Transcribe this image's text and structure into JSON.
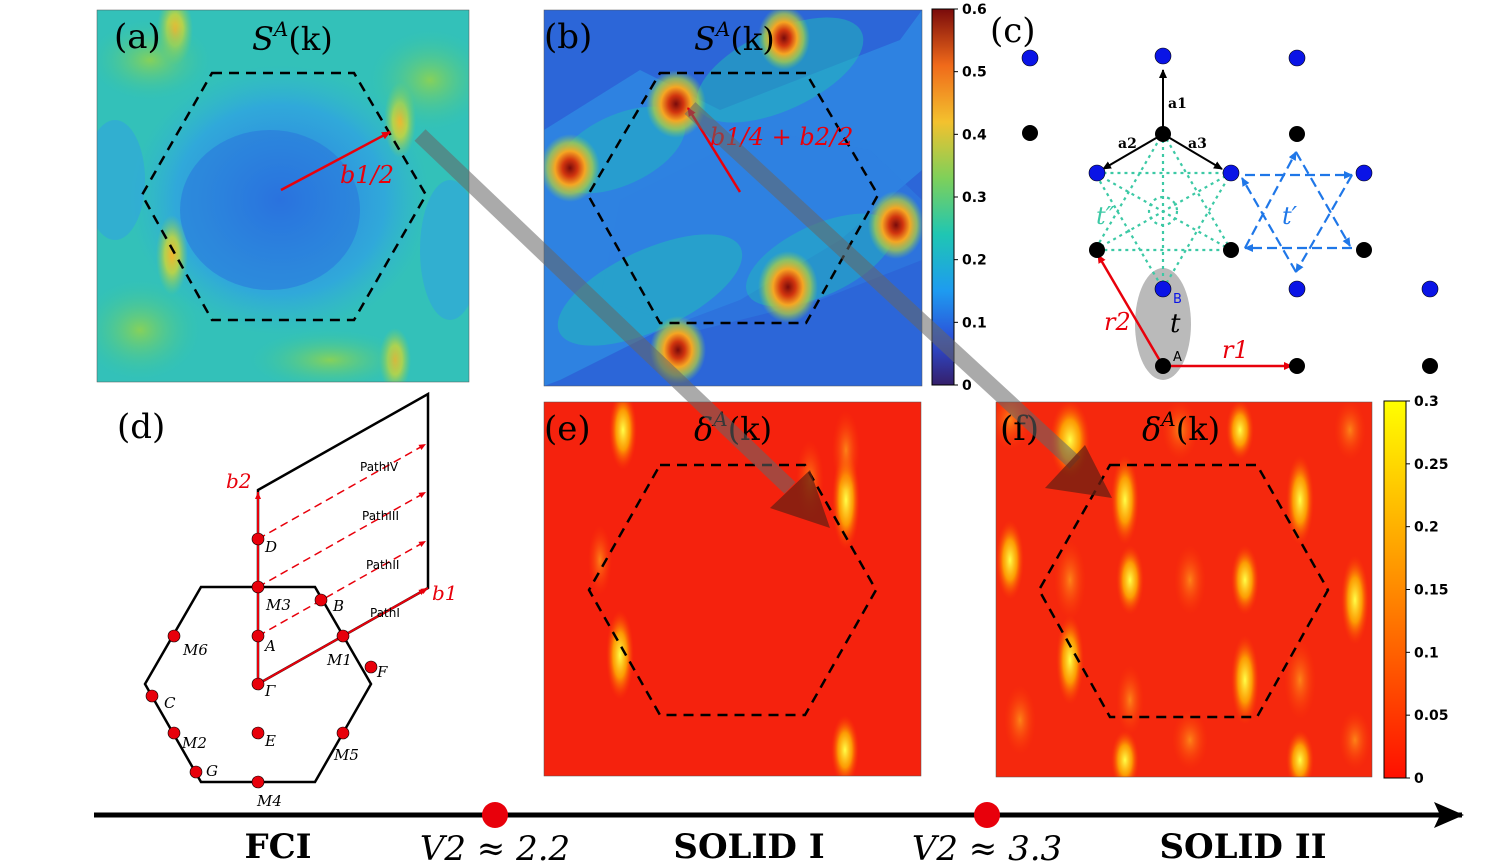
{
  "panels": {
    "a": {
      "tag": "(a)",
      "title_base": "S",
      "title_sup": "A",
      "title_arg": "(k)",
      "vector_label": "b1/2"
    },
    "b": {
      "tag": "(b)",
      "title_base": "S",
      "title_sup": "A",
      "title_arg": "(k)",
      "vector_label": "b1/4 + b2/2"
    },
    "c": {
      "tag": "(c)",
      "vec_a1": "a1",
      "vec_a2": "a2",
      "vec_a3": "a3",
      "hop_t": "t",
      "hop_tp": "t′",
      "hop_tpp": "t″",
      "site_A": "A",
      "site_B": "B",
      "vec_r1": "r1",
      "vec_r2": "r2"
    },
    "d": {
      "tag": "(d)",
      "b1": "b1",
      "b2": "b2",
      "paths": [
        "PathI",
        "PathII",
        "PathIII",
        "PathIV"
      ],
      "points": [
        "D",
        "M3",
        "B",
        "A",
        "M1",
        "F",
        "M6",
        "Γ",
        "C",
        "E",
        "M2",
        "M5",
        "G",
        "M4"
      ]
    },
    "e": {
      "tag": "(e)",
      "title_base": "δ",
      "title_sup": "A",
      "title_arg": "(k)"
    },
    "f": {
      "tag": "(f)",
      "title_base": "δ",
      "title_sup": "A",
      "title_arg": "(k)"
    }
  },
  "colorbar_S": {
    "ticks": [
      "0",
      "0.1",
      "0.2",
      "0.3",
      "0.4",
      "0.5",
      "0.6"
    ]
  },
  "colorbar_delta": {
    "ticks": [
      "0",
      "0.05",
      "0.1",
      "0.15",
      "0.2",
      "0.25",
      "0.3"
    ]
  },
  "phase_axis": {
    "phases": [
      "FCI",
      "SOLID I",
      "SOLID II"
    ],
    "transitions": [
      "V2 ≈ 2.2",
      "V2 ≈ 3.3"
    ]
  },
  "colors": {
    "accent_red": "#e8000b",
    "blue_site": "#0a14e6",
    "teal": "#3cc9a5",
    "dash_blue": "#1f77e8"
  }
}
